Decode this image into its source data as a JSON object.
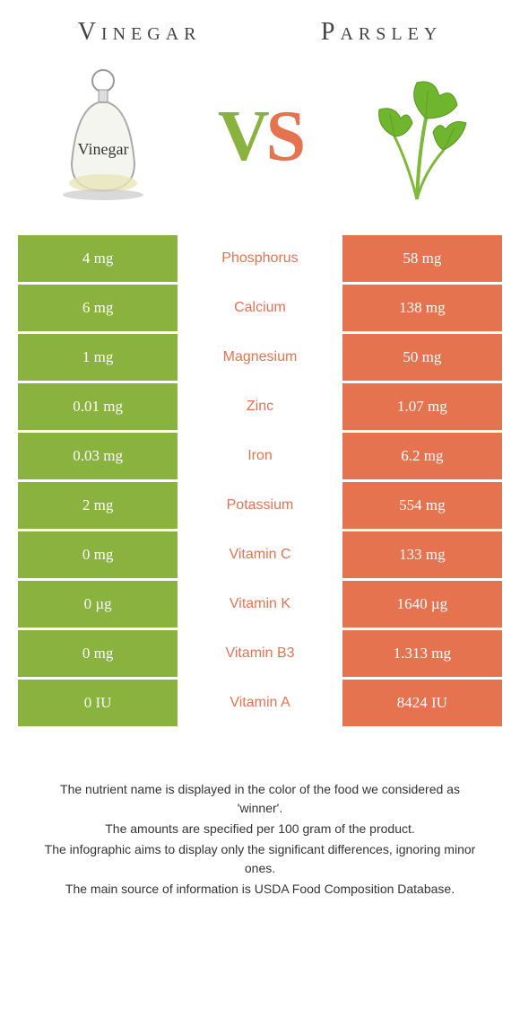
{
  "header": {
    "left_title": "Vinegar",
    "right_title": "Parsley"
  },
  "vs": {
    "v": "V",
    "s": "S"
  },
  "colors": {
    "left_bg": "#8ab23f",
    "right_bg": "#e67350",
    "left_text": "#8ab23f",
    "right_text": "#e67350",
    "nutrient_font_family": "Arial, Helvetica, sans-serif"
  },
  "rows": [
    {
      "nutrient": "Phosphorus",
      "left": "4 mg",
      "right": "58 mg",
      "winner": "right"
    },
    {
      "nutrient": "Calcium",
      "left": "6 mg",
      "right": "138 mg",
      "winner": "right"
    },
    {
      "nutrient": "Magnesium",
      "left": "1 mg",
      "right": "50 mg",
      "winner": "right"
    },
    {
      "nutrient": "Zinc",
      "left": "0.01 mg",
      "right": "1.07 mg",
      "winner": "right"
    },
    {
      "nutrient": "Iron",
      "left": "0.03 mg",
      "right": "6.2 mg",
      "winner": "right"
    },
    {
      "nutrient": "Potassium",
      "left": "2 mg",
      "right": "554 mg",
      "winner": "right"
    },
    {
      "nutrient": "Vitamin C",
      "left": "0 mg",
      "right": "133 mg",
      "winner": "right"
    },
    {
      "nutrient": "Vitamin K",
      "left": "0 µg",
      "right": "1640 µg",
      "winner": "right"
    },
    {
      "nutrient": "Vitamin B3",
      "left": "0 mg",
      "right": "1.313 mg",
      "winner": "right"
    },
    {
      "nutrient": "Vitamin A",
      "left": "0 IU",
      "right": "8424 IU",
      "winner": "right"
    }
  ],
  "footnotes": [
    "The nutrient name is displayed in the color of the food we considered as 'winner'.",
    "The amounts are specified per 100 gram of the product.",
    "The infographic aims to display only the significant differences, ignoring minor ones.",
    "The main source of information is USDA Food Composition Database."
  ],
  "icons": {
    "vinegar_label": "Vinegar"
  }
}
